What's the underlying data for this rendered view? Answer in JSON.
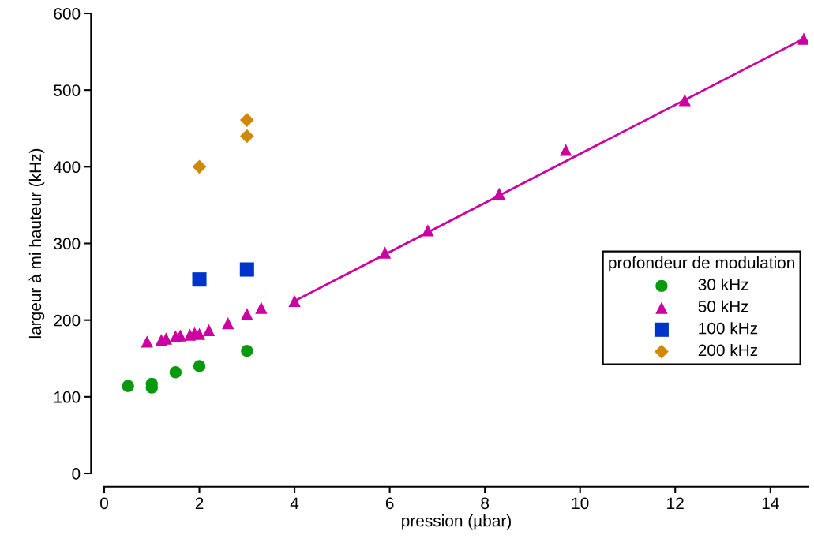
{
  "chart_data": {
    "type": "scatter",
    "xlabel": "pression (µbar)",
    "ylabel": "largeur à mi hauteur (kHz)",
    "legend_title": "profondeur de modulation",
    "legend": "right",
    "grid": false,
    "xlim": [
      0,
      14.8
    ],
    "ylim": [
      0,
      600
    ],
    "xticks": [
      0,
      2,
      4,
      6,
      8,
      10,
      12,
      14
    ],
    "yticks": [
      0,
      100,
      200,
      300,
      400,
      500,
      600
    ],
    "series": [
      {
        "name": "30 kHz",
        "color": "#079a0e",
        "marker": "circle",
        "x": [
          0.5,
          1,
          1,
          1.5,
          2,
          3
        ],
        "values": [
          114,
          117,
          112,
          132,
          140,
          160
        ]
      },
      {
        "name": "50 kHz",
        "color": "#cc00a0",
        "marker": "triangle",
        "x": [
          0.9,
          1.2,
          1.3,
          1.5,
          1.6,
          1.8,
          1.9,
          2.0,
          2.2,
          2.6,
          3.0,
          3.3,
          4.0,
          5.9,
          6.8,
          8.3,
          9.7,
          12.2,
          14.7
        ],
        "values": [
          172,
          174,
          176,
          179,
          180,
          181,
          183,
          182,
          187,
          196,
          208,
          216,
          225,
          288,
          317,
          365,
          422,
          487,
          567
        ]
      },
      {
        "name": "100 kHz",
        "color": "#0033cc",
        "marker": "square",
        "x": [
          2,
          3
        ],
        "values": [
          253,
          266
        ]
      },
      {
        "name": "200 kHz",
        "color": "#d08806",
        "marker": "diamond",
        "x": [
          2,
          3,
          3
        ],
        "values": [
          400,
          440,
          461
        ]
      },
      {
        "type": "line",
        "color": "#cc00a0",
        "line_style": "solid",
        "marker": "none",
        "x": [
          4.0,
          14.7
        ],
        "values": [
          225,
          567
        ]
      }
    ]
  }
}
